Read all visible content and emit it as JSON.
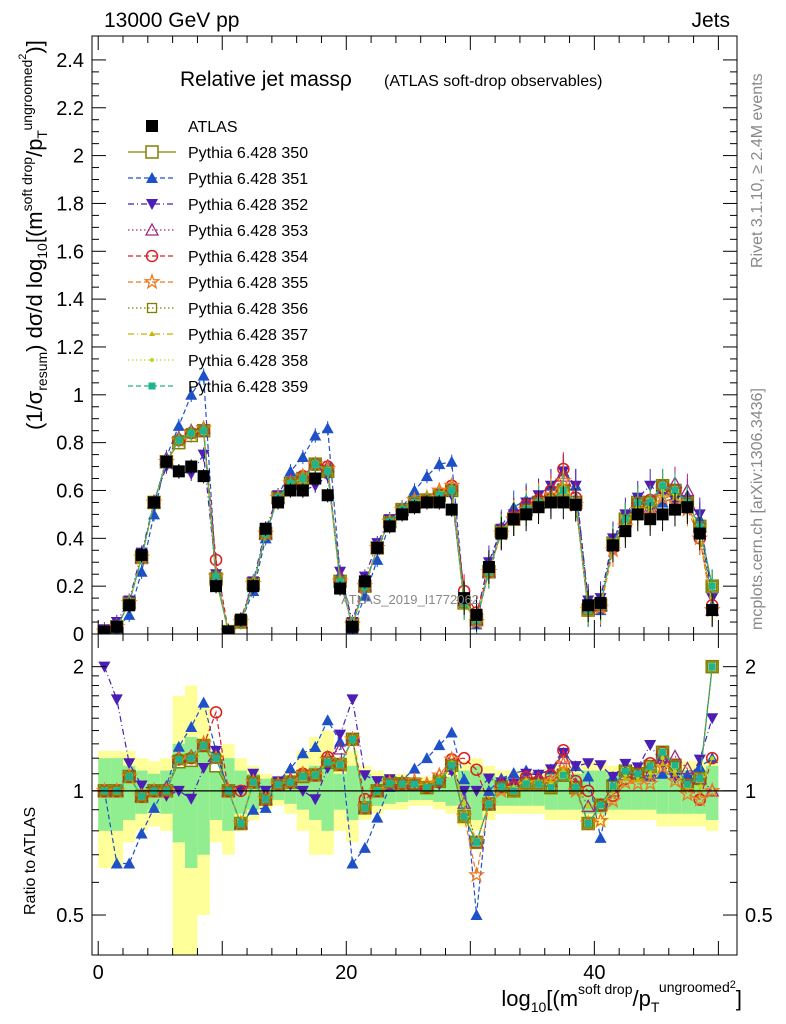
{
  "header": {
    "left": "13000 GeV pp",
    "right": "Jets"
  },
  "side_labels": {
    "rivet": "Rivet 3.1.10, ≥ 2.4M events",
    "mcplots": "mcplots.cern.ch [arXiv:1306.3436]"
  },
  "watermark": "ATLAS_2019_I1772062",
  "chart_data": [
    {
      "type": "line",
      "title": "Relative jet massρ",
      "subtitle": "(ATLAS soft-drop observables)",
      "ylabel_parts": {
        "pre": "(1/σ",
        "sub1": "resum",
        "mid": ") dσ/d log",
        "sub2": "10",
        "post": "[(m",
        "sup1": "soft drop",
        "slash": "/p",
        "sub3": "T",
        "sup2": "ungroomed",
        "sup3": "2",
        "close": ")]"
      },
      "xlabel_parts": {
        "pre": "log",
        "sub": "10",
        "post": "[(m",
        "sup1": "soft drop",
        "slash": "/p",
        "sub2": "T",
        "sup2": "ungroomed",
        "sup3": "2",
        "close": "]"
      },
      "xlim": [
        -0.5,
        51.5
      ],
      "ylim": [
        0,
        2.5
      ],
      "x_ticks": [
        0,
        20,
        40
      ],
      "y_ticks": [
        0,
        0.2,
        0.4,
        0.6,
        0.8,
        1,
        1.2,
        1.4,
        1.6,
        1.8,
        2,
        2.2,
        2.4
      ],
      "y_tick_labels": [
        "0",
        "0.2",
        "0.4",
        "0.6",
        "0.8",
        "1",
        "1.2",
        "1.4",
        "1.6",
        "1.8",
        "2",
        "2.2",
        "2.4"
      ],
      "legend_position": "top-left",
      "x": [
        0.5,
        1.5,
        2.5,
        3.5,
        4.5,
        5.5,
        6.5,
        7.5,
        8.5,
        9.5,
        10.5,
        11.5,
        12.5,
        13.5,
        14.5,
        15.5,
        16.5,
        17.5,
        18.5,
        19.5,
        20.5,
        21.5,
        22.5,
        23.5,
        24.5,
        25.5,
        26.5,
        27.5,
        28.5,
        29.5,
        30.5,
        31.5,
        32.5,
        33.5,
        34.5,
        35.5,
        36.5,
        37.5,
        38.5,
        39.5,
        40.5,
        41.5,
        42.5,
        43.5,
        44.5,
        45.5,
        46.5,
        47.5,
        48.5,
        49.5
      ],
      "series": [
        {
          "name": "ATLAS",
          "color": "#000000",
          "marker": "square-filled",
          "dash": "none",
          "values": [
            0.01,
            0.03,
            0.12,
            0.33,
            0.55,
            0.72,
            0.68,
            0.7,
            0.66,
            0.2,
            0.01,
            0.06,
            0.2,
            0.44,
            0.55,
            0.6,
            0.6,
            0.65,
            0.58,
            0.19,
            0.03,
            0.22,
            0.36,
            0.45,
            0.5,
            0.53,
            0.55,
            0.55,
            0.52,
            0.15,
            0.08,
            0.28,
            0.42,
            0.48,
            0.5,
            0.53,
            0.55,
            0.55,
            0.54,
            0.12,
            0.13,
            0.37,
            0.43,
            0.5,
            0.48,
            0.5,
            0.52,
            0.53,
            0.42,
            0.1
          ]
        },
        {
          "name": "Pythia 6.428 350",
          "color": "#808000",
          "marker": "square-open",
          "dash": "solid",
          "values": [
            0.01,
            0.03,
            0.13,
            0.32,
            0.55,
            0.72,
            0.8,
            0.83,
            0.85,
            0.23,
            0.01,
            0.05,
            0.21,
            0.42,
            0.57,
            0.63,
            0.65,
            0.71,
            0.68,
            0.22,
            0.04,
            0.2,
            0.36,
            0.47,
            0.52,
            0.55,
            0.56,
            0.58,
            0.6,
            0.13,
            0.06,
            0.26,
            0.43,
            0.48,
            0.52,
            0.55,
            0.56,
            0.6,
            0.55,
            0.1,
            0.12,
            0.38,
            0.48,
            0.55,
            0.55,
            0.62,
            0.6,
            0.55,
            0.45,
            0.2
          ]
        },
        {
          "name": "Pythia 6.428 351",
          "color": "#1e50c8",
          "marker": "triangle-up",
          "dash": "dashed",
          "values": [
            0.01,
            0.02,
            0.08,
            0.26,
            0.5,
            0.74,
            0.87,
            1.0,
            1.08,
            0.25,
            0.01,
            0.05,
            0.18,
            0.4,
            0.58,
            0.68,
            0.74,
            0.83,
            0.86,
            0.25,
            0.02,
            0.16,
            0.31,
            0.46,
            0.53,
            0.6,
            0.66,
            0.71,
            0.72,
            0.16,
            0.04,
            0.28,
            0.45,
            0.53,
            0.56,
            0.58,
            0.62,
            0.68,
            0.62,
            0.13,
            0.1,
            0.4,
            0.48,
            0.55,
            0.52,
            0.55,
            0.57,
            0.58,
            0.48,
            0.12
          ]
        },
        {
          "name": "Pythia 6.428 352",
          "color": "#4b1eb4",
          "marker": "triangle-down",
          "dash": "dashdot",
          "values": [
            0.02,
            0.05,
            0.14,
            0.34,
            0.55,
            0.7,
            0.68,
            0.67,
            0.75,
            0.25,
            0.01,
            0.06,
            0.22,
            0.44,
            0.58,
            0.62,
            0.6,
            0.62,
            0.66,
            0.26,
            0.05,
            0.24,
            0.38,
            0.48,
            0.52,
            0.55,
            0.56,
            0.57,
            0.58,
            0.15,
            0.08,
            0.3,
            0.44,
            0.5,
            0.55,
            0.58,
            0.62,
            0.68,
            0.62,
            0.14,
            0.15,
            0.4,
            0.5,
            0.57,
            0.62,
            0.58,
            0.56,
            0.55,
            0.5,
            0.15
          ]
        },
        {
          "name": "Pythia 6.428 353",
          "color": "#a0287c",
          "marker": "triangle-up-open",
          "dash": "dotted",
          "values": [
            0.01,
            0.03,
            0.13,
            0.32,
            0.55,
            0.73,
            0.82,
            0.85,
            0.86,
            0.24,
            0.01,
            0.05,
            0.21,
            0.42,
            0.57,
            0.64,
            0.66,
            0.71,
            0.7,
            0.24,
            0.04,
            0.2,
            0.36,
            0.47,
            0.52,
            0.55,
            0.57,
            0.6,
            0.62,
            0.14,
            0.06,
            0.26,
            0.44,
            0.5,
            0.54,
            0.57,
            0.58,
            0.66,
            0.56,
            0.11,
            0.12,
            0.37,
            0.47,
            0.55,
            0.53,
            0.6,
            0.63,
            0.6,
            0.45,
            0.1
          ]
        },
        {
          "name": "Pythia 6.428 354",
          "color": "#dc1e1e",
          "marker": "circle-open",
          "dash": "dashed",
          "values": [
            0.01,
            0.03,
            0.13,
            0.32,
            0.55,
            0.72,
            0.81,
            0.84,
            0.85,
            0.31,
            0.01,
            0.06,
            0.21,
            0.42,
            0.57,
            0.63,
            0.66,
            0.71,
            0.7,
            0.22,
            0.04,
            0.21,
            0.36,
            0.47,
            0.52,
            0.55,
            0.56,
            0.58,
            0.62,
            0.18,
            0.09,
            0.26,
            0.43,
            0.49,
            0.54,
            0.56,
            0.6,
            0.69,
            0.57,
            0.12,
            0.12,
            0.36,
            0.46,
            0.55,
            0.56,
            0.62,
            0.6,
            0.55,
            0.4,
            0.12
          ]
        },
        {
          "name": "Pythia 6.428 355",
          "color": "#f0781e",
          "marker": "star-open",
          "dash": "dashed",
          "values": [
            0.01,
            0.03,
            0.13,
            0.32,
            0.55,
            0.72,
            0.81,
            0.84,
            0.86,
            0.24,
            0.01,
            0.05,
            0.21,
            0.42,
            0.57,
            0.63,
            0.66,
            0.71,
            0.69,
            0.22,
            0.04,
            0.2,
            0.36,
            0.47,
            0.52,
            0.56,
            0.57,
            0.6,
            0.62,
            0.13,
            0.05,
            0.26,
            0.42,
            0.48,
            0.52,
            0.55,
            0.58,
            0.64,
            0.54,
            0.1,
            0.11,
            0.35,
            0.45,
            0.52,
            0.5,
            0.57,
            0.55,
            0.52,
            0.4,
            0.1
          ]
        },
        {
          "name": "Pythia 6.428 356",
          "color": "#808000",
          "marker": "square-open-small",
          "dash": "dotted",
          "values": [
            0.01,
            0.03,
            0.13,
            0.32,
            0.55,
            0.72,
            0.81,
            0.84,
            0.85,
            0.24,
            0.01,
            0.05,
            0.21,
            0.42,
            0.57,
            0.63,
            0.65,
            0.71,
            0.68,
            0.22,
            0.04,
            0.2,
            0.36,
            0.47,
            0.52,
            0.55,
            0.56,
            0.58,
            0.6,
            0.13,
            0.06,
            0.26,
            0.43,
            0.48,
            0.52,
            0.55,
            0.56,
            0.6,
            0.55,
            0.1,
            0.12,
            0.38,
            0.48,
            0.55,
            0.55,
            0.62,
            0.6,
            0.55,
            0.45,
            0.2
          ]
        },
        {
          "name": "Pythia 6.428 357",
          "color": "#c8b400",
          "marker": "triangle-small",
          "dash": "dashdot",
          "values": [
            0.01,
            0.03,
            0.13,
            0.32,
            0.55,
            0.72,
            0.81,
            0.84,
            0.85,
            0.24,
            0.01,
            0.05,
            0.21,
            0.42,
            0.57,
            0.63,
            0.65,
            0.71,
            0.68,
            0.22,
            0.04,
            0.2,
            0.36,
            0.47,
            0.52,
            0.55,
            0.57,
            0.59,
            0.61,
            0.14,
            0.06,
            0.26,
            0.43,
            0.49,
            0.53,
            0.56,
            0.58,
            0.62,
            0.55,
            0.11,
            0.12,
            0.37,
            0.46,
            0.53,
            0.52,
            0.58,
            0.57,
            0.54,
            0.42,
            0.12
          ]
        },
        {
          "name": "Pythia 6.428 358",
          "color": "#b4dc1e",
          "marker": "dot",
          "dash": "dotted",
          "values": [
            0.01,
            0.03,
            0.13,
            0.32,
            0.55,
            0.72,
            0.81,
            0.84,
            0.85,
            0.24,
            0.01,
            0.05,
            0.21,
            0.42,
            0.57,
            0.63,
            0.65,
            0.71,
            0.68,
            0.22,
            0.04,
            0.2,
            0.36,
            0.47,
            0.52,
            0.55,
            0.56,
            0.58,
            0.6,
            0.14,
            0.06,
            0.26,
            0.43,
            0.49,
            0.53,
            0.55,
            0.57,
            0.61,
            0.55,
            0.11,
            0.12,
            0.37,
            0.47,
            0.54,
            0.53,
            0.6,
            0.58,
            0.55,
            0.43,
            0.12
          ]
        },
        {
          "name": "Pythia 6.428 359",
          "color": "#1eb48c",
          "marker": "square-filled-small",
          "dash": "dashed",
          "values": [
            0.01,
            0.03,
            0.13,
            0.32,
            0.55,
            0.72,
            0.81,
            0.84,
            0.85,
            0.24,
            0.01,
            0.05,
            0.21,
            0.42,
            0.57,
            0.63,
            0.65,
            0.71,
            0.68,
            0.22,
            0.04,
            0.2,
            0.36,
            0.47,
            0.52,
            0.55,
            0.56,
            0.58,
            0.6,
            0.13,
            0.06,
            0.26,
            0.43,
            0.48,
            0.52,
            0.55,
            0.56,
            0.6,
            0.55,
            0.1,
            0.12,
            0.38,
            0.48,
            0.55,
            0.55,
            0.62,
            0.6,
            0.55,
            0.45,
            0.2
          ]
        }
      ]
    },
    {
      "type": "line",
      "ylabel": "Ratio to ATLAS",
      "xlim": [
        -0.5,
        51.5
      ],
      "ylim": [
        0.4,
        2.4
      ],
      "y_scale": "log",
      "y_ticks": [
        0.5,
        1,
        2
      ],
      "y_tick_labels": [
        "0.5",
        "1",
        "2"
      ],
      "reference_line": 1,
      "band_colors": {
        "inner": "#90ee90",
        "outer": "#ffff99"
      },
      "inner_band": [
        [
          0.8,
          1.2
        ],
        [
          0.8,
          1.2
        ],
        [
          0.85,
          1.15
        ],
        [
          0.88,
          1.12
        ],
        [
          0.9,
          1.1
        ],
        [
          0.88,
          1.12
        ],
        [
          0.75,
          1.3
        ],
        [
          0.65,
          1.35
        ],
        [
          0.7,
          1.3
        ],
        [
          0.85,
          1.15
        ],
        [
          0.8,
          1.2
        ],
        [
          0.88,
          1.12
        ],
        [
          0.9,
          1.1
        ],
        [
          0.93,
          1.07
        ],
        [
          0.95,
          1.05
        ],
        [
          0.93,
          1.07
        ],
        [
          0.9,
          1.1
        ],
        [
          0.85,
          1.15
        ],
        [
          0.8,
          1.2
        ],
        [
          0.9,
          1.1
        ],
        [
          0.85,
          1.15
        ],
        [
          0.9,
          1.1
        ],
        [
          0.92,
          1.08
        ],
        [
          0.93,
          1.07
        ],
        [
          0.94,
          1.06
        ],
        [
          0.95,
          1.05
        ],
        [
          0.95,
          1.05
        ],
        [
          0.94,
          1.06
        ],
        [
          0.92,
          1.08
        ],
        [
          0.88,
          1.12
        ],
        [
          0.85,
          1.15
        ],
        [
          0.9,
          1.1
        ],
        [
          0.92,
          1.08
        ],
        [
          0.92,
          1.08
        ],
        [
          0.92,
          1.08
        ],
        [
          0.92,
          1.08
        ],
        [
          0.9,
          1.1
        ],
        [
          0.9,
          1.1
        ],
        [
          0.9,
          1.1
        ],
        [
          0.88,
          1.12
        ],
        [
          0.88,
          1.12
        ],
        [
          0.9,
          1.1
        ],
        [
          0.9,
          1.1
        ],
        [
          0.9,
          1.1
        ],
        [
          0.9,
          1.1
        ],
        [
          0.88,
          1.12
        ],
        [
          0.88,
          1.12
        ],
        [
          0.88,
          1.12
        ],
        [
          0.88,
          1.12
        ],
        [
          0.85,
          1.15
        ]
      ],
      "outer_band": [
        [
          0.65,
          1.25
        ],
        [
          0.65,
          1.25
        ],
        [
          0.75,
          1.25
        ],
        [
          0.8,
          1.2
        ],
        [
          0.82,
          1.18
        ],
        [
          0.8,
          1.2
        ],
        [
          0.4,
          1.7
        ],
        [
          0.4,
          1.8
        ],
        [
          0.5,
          1.6
        ],
        [
          0.75,
          1.25
        ],
        [
          0.7,
          1.3
        ],
        [
          0.8,
          1.2
        ],
        [
          0.85,
          1.15
        ],
        [
          0.9,
          1.1
        ],
        [
          0.92,
          1.08
        ],
        [
          0.88,
          1.12
        ],
        [
          0.8,
          1.25
        ],
        [
          0.7,
          1.35
        ],
        [
          0.7,
          1.4
        ],
        [
          0.8,
          1.2
        ],
        [
          0.75,
          1.25
        ],
        [
          0.85,
          1.15
        ],
        [
          0.88,
          1.12
        ],
        [
          0.9,
          1.1
        ],
        [
          0.9,
          1.1
        ],
        [
          0.92,
          1.08
        ],
        [
          0.92,
          1.08
        ],
        [
          0.9,
          1.1
        ],
        [
          0.88,
          1.12
        ],
        [
          0.82,
          1.18
        ],
        [
          0.8,
          1.2
        ],
        [
          0.85,
          1.15
        ],
        [
          0.88,
          1.12
        ],
        [
          0.88,
          1.12
        ],
        [
          0.88,
          1.12
        ],
        [
          0.88,
          1.12
        ],
        [
          0.85,
          1.15
        ],
        [
          0.85,
          1.15
        ],
        [
          0.85,
          1.15
        ],
        [
          0.82,
          1.18
        ],
        [
          0.82,
          1.18
        ],
        [
          0.85,
          1.15
        ],
        [
          0.85,
          1.15
        ],
        [
          0.85,
          1.15
        ],
        [
          0.85,
          1.15
        ],
        [
          0.82,
          1.18
        ],
        [
          0.82,
          1.18
        ],
        [
          0.82,
          1.18
        ],
        [
          0.82,
          1.18
        ],
        [
          0.8,
          1.2
        ]
      ]
    }
  ]
}
